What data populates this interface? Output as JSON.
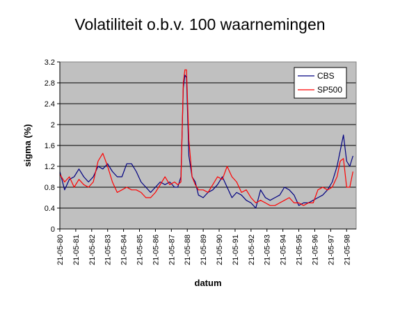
{
  "chart_data": {
    "type": "line",
    "title": "Volatiliteit o.b.v. 100 waarnemingen",
    "xlabel": "datum",
    "ylabel": "sigma (%)",
    "ylim": [
      0,
      3.2
    ],
    "yticks": [
      "0",
      "0.4",
      "0.8",
      "1.2",
      "1.6",
      "2",
      "2.4",
      "2.8",
      "3.2"
    ],
    "xticks": [
      "21-05-80",
      "21-05-81",
      "21-05-82",
      "21-05-83",
      "21-05-84",
      "21-05-85",
      "21-05-86",
      "21-05-87",
      "21-05-88",
      "21-05-89",
      "21-05-90",
      "21-05-91",
      "21-05-92",
      "21-05-93",
      "21-05-94",
      "21-05-95",
      "21-05-96",
      "21-05-97",
      "21-05-98"
    ],
    "grid": true,
    "legend_position": "top-right",
    "x": [
      1980.0,
      1980.3,
      1980.6,
      1980.9,
      1981.2,
      1981.5,
      1981.8,
      1982.1,
      1982.4,
      1982.7,
      1983.0,
      1983.3,
      1983.6,
      1983.9,
      1984.2,
      1984.5,
      1984.8,
      1985.1,
      1985.4,
      1985.7,
      1986.0,
      1986.3,
      1986.6,
      1986.9,
      1987.2,
      1987.4,
      1987.6,
      1987.75,
      1987.85,
      1987.95,
      1988.1,
      1988.3,
      1988.5,
      1988.7,
      1989.0,
      1989.3,
      1989.6,
      1989.9,
      1990.2,
      1990.5,
      1990.8,
      1991.1,
      1991.4,
      1991.7,
      1992.0,
      1992.3,
      1992.6,
      1992.9,
      1993.2,
      1993.5,
      1993.8,
      1994.1,
      1994.4,
      1994.7,
      1995.0,
      1995.3,
      1995.6,
      1995.9,
      1996.2,
      1996.5,
      1996.8,
      1997.1,
      1997.4,
      1997.6,
      1997.8,
      1998.0,
      1998.2,
      1998.4
    ],
    "series": [
      {
        "name": "CBS",
        "color": "#000080",
        "values": [
          1.1,
          0.75,
          0.95,
          1.0,
          1.15,
          1.0,
          0.9,
          1.0,
          1.2,
          1.15,
          1.25,
          1.1,
          1.0,
          1.0,
          1.25,
          1.25,
          1.1,
          0.9,
          0.8,
          0.7,
          0.8,
          0.9,
          0.85,
          0.9,
          0.8,
          0.8,
          1.0,
          2.7,
          2.95,
          2.9,
          1.4,
          1.0,
          0.9,
          0.65,
          0.6,
          0.7,
          0.75,
          0.85,
          1.0,
          0.8,
          0.6,
          0.7,
          0.65,
          0.55,
          0.5,
          0.4,
          0.75,
          0.6,
          0.55,
          0.6,
          0.65,
          0.8,
          0.75,
          0.65,
          0.45,
          0.5,
          0.5,
          0.55,
          0.6,
          0.65,
          0.75,
          0.9,
          1.2,
          1.5,
          1.8,
          1.3,
          1.2,
          1.4
        ]
      },
      {
        "name": "SP500",
        "color": "#ff0000",
        "values": [
          1.05,
          0.9,
          1.0,
          0.8,
          0.95,
          0.85,
          0.8,
          0.9,
          1.3,
          1.45,
          1.2,
          0.9,
          0.7,
          0.75,
          0.8,
          0.75,
          0.75,
          0.7,
          0.6,
          0.6,
          0.7,
          0.85,
          1.0,
          0.85,
          0.9,
          0.85,
          0.9,
          2.8,
          3.05,
          3.05,
          1.7,
          1.0,
          0.85,
          0.75,
          0.75,
          0.7,
          0.85,
          1.0,
          0.95,
          1.2,
          1.0,
          0.9,
          0.7,
          0.75,
          0.6,
          0.5,
          0.55,
          0.5,
          0.45,
          0.45,
          0.5,
          0.55,
          0.6,
          0.5,
          0.5,
          0.45,
          0.5,
          0.5,
          0.75,
          0.8,
          0.75,
          0.8,
          1.0,
          1.3,
          1.35,
          0.8,
          0.8,
          1.1
        ]
      }
    ]
  }
}
